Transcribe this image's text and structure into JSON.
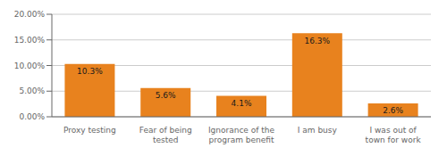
{
  "chart_data": {
    "type": "bar",
    "categories": [
      "Proxy testing",
      "Fear of being\ntested",
      "Ignorance of the\nprogram benefit",
      "I am busy",
      "I was out of\ntown for work"
    ],
    "values": [
      10.3,
      5.6,
      4.1,
      16.3,
      2.6
    ],
    "value_labels": [
      "10.3%",
      "5.6%",
      "4.1%",
      "16.3%",
      "2.6%"
    ],
    "data_labels": true,
    "color": "#E8821E",
    "ylim": [
      0,
      20
    ],
    "yticks": [
      {
        "value": 0,
        "label": "0.00%"
      },
      {
        "value": 5.0,
        "label": "5.00%"
      },
      {
        "value": 10.0,
        "label": "10.00%"
      },
      {
        "value": 15.0,
        "label": "15.00%"
      },
      {
        "value": 20.0,
        "label": "20.00%"
      }
    ],
    "grid": true
  }
}
